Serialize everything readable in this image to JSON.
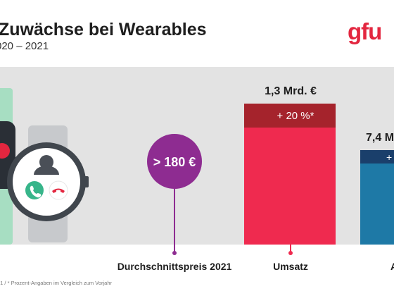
{
  "header": {
    "title": "Zuwächse bei Wearables",
    "subtitle": "020 – 2021",
    "logo": "gfu"
  },
  "footnote": "21 / * Prozent-Angaben im Vergleich zum Vorjahr",
  "colors": {
    "brand_red": "#e3263f",
    "bar_red": "#ef2a4f",
    "bar_red_dark": "#a5232c",
    "bar_blue": "#1e79a6",
    "bar_blue_dark": "#1a3f6b",
    "purple": "#8e2c91",
    "panel_bg": "#e3e3e3"
  },
  "illustration": {
    "icons": [
      "smartwatch-icon",
      "person-icon",
      "accept-call-icon",
      "decline-call-icon",
      "heart-icon"
    ]
  },
  "chart_data": {
    "type": "bar",
    "title": "Zuwächse bei Wearables",
    "categories": [
      "Durchschnittspreis 2021",
      "Umsatz",
      "A"
    ],
    "metrics": [
      {
        "category": "Durchschnittspreis 2021",
        "label": "> 180 €",
        "shape": "circle"
      },
      {
        "category": "Umsatz",
        "label": "1,3 Mrd. €",
        "value": 1.3,
        "unit": "Mrd. €",
        "growth_label": "+ 20 %*",
        "growth_percent": 20
      },
      {
        "category": "A",
        "label": "7,4 M",
        "value": 7.4,
        "unit": "M",
        "growth_label": "+"
      }
    ]
  }
}
